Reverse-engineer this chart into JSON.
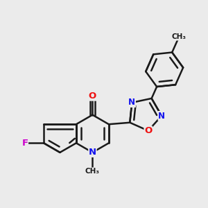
{
  "background_color": "#ebebeb",
  "bond_color": "#1a1a1a",
  "bond_width": 1.8,
  "atom_colors": {
    "N": "#1010ee",
    "O": "#ee1010",
    "F": "#cc00cc",
    "C": "#1a1a1a"
  },
  "font_size": 8.5,
  "fig_width": 3.0,
  "fig_height": 3.0,
  "dpi": 100
}
